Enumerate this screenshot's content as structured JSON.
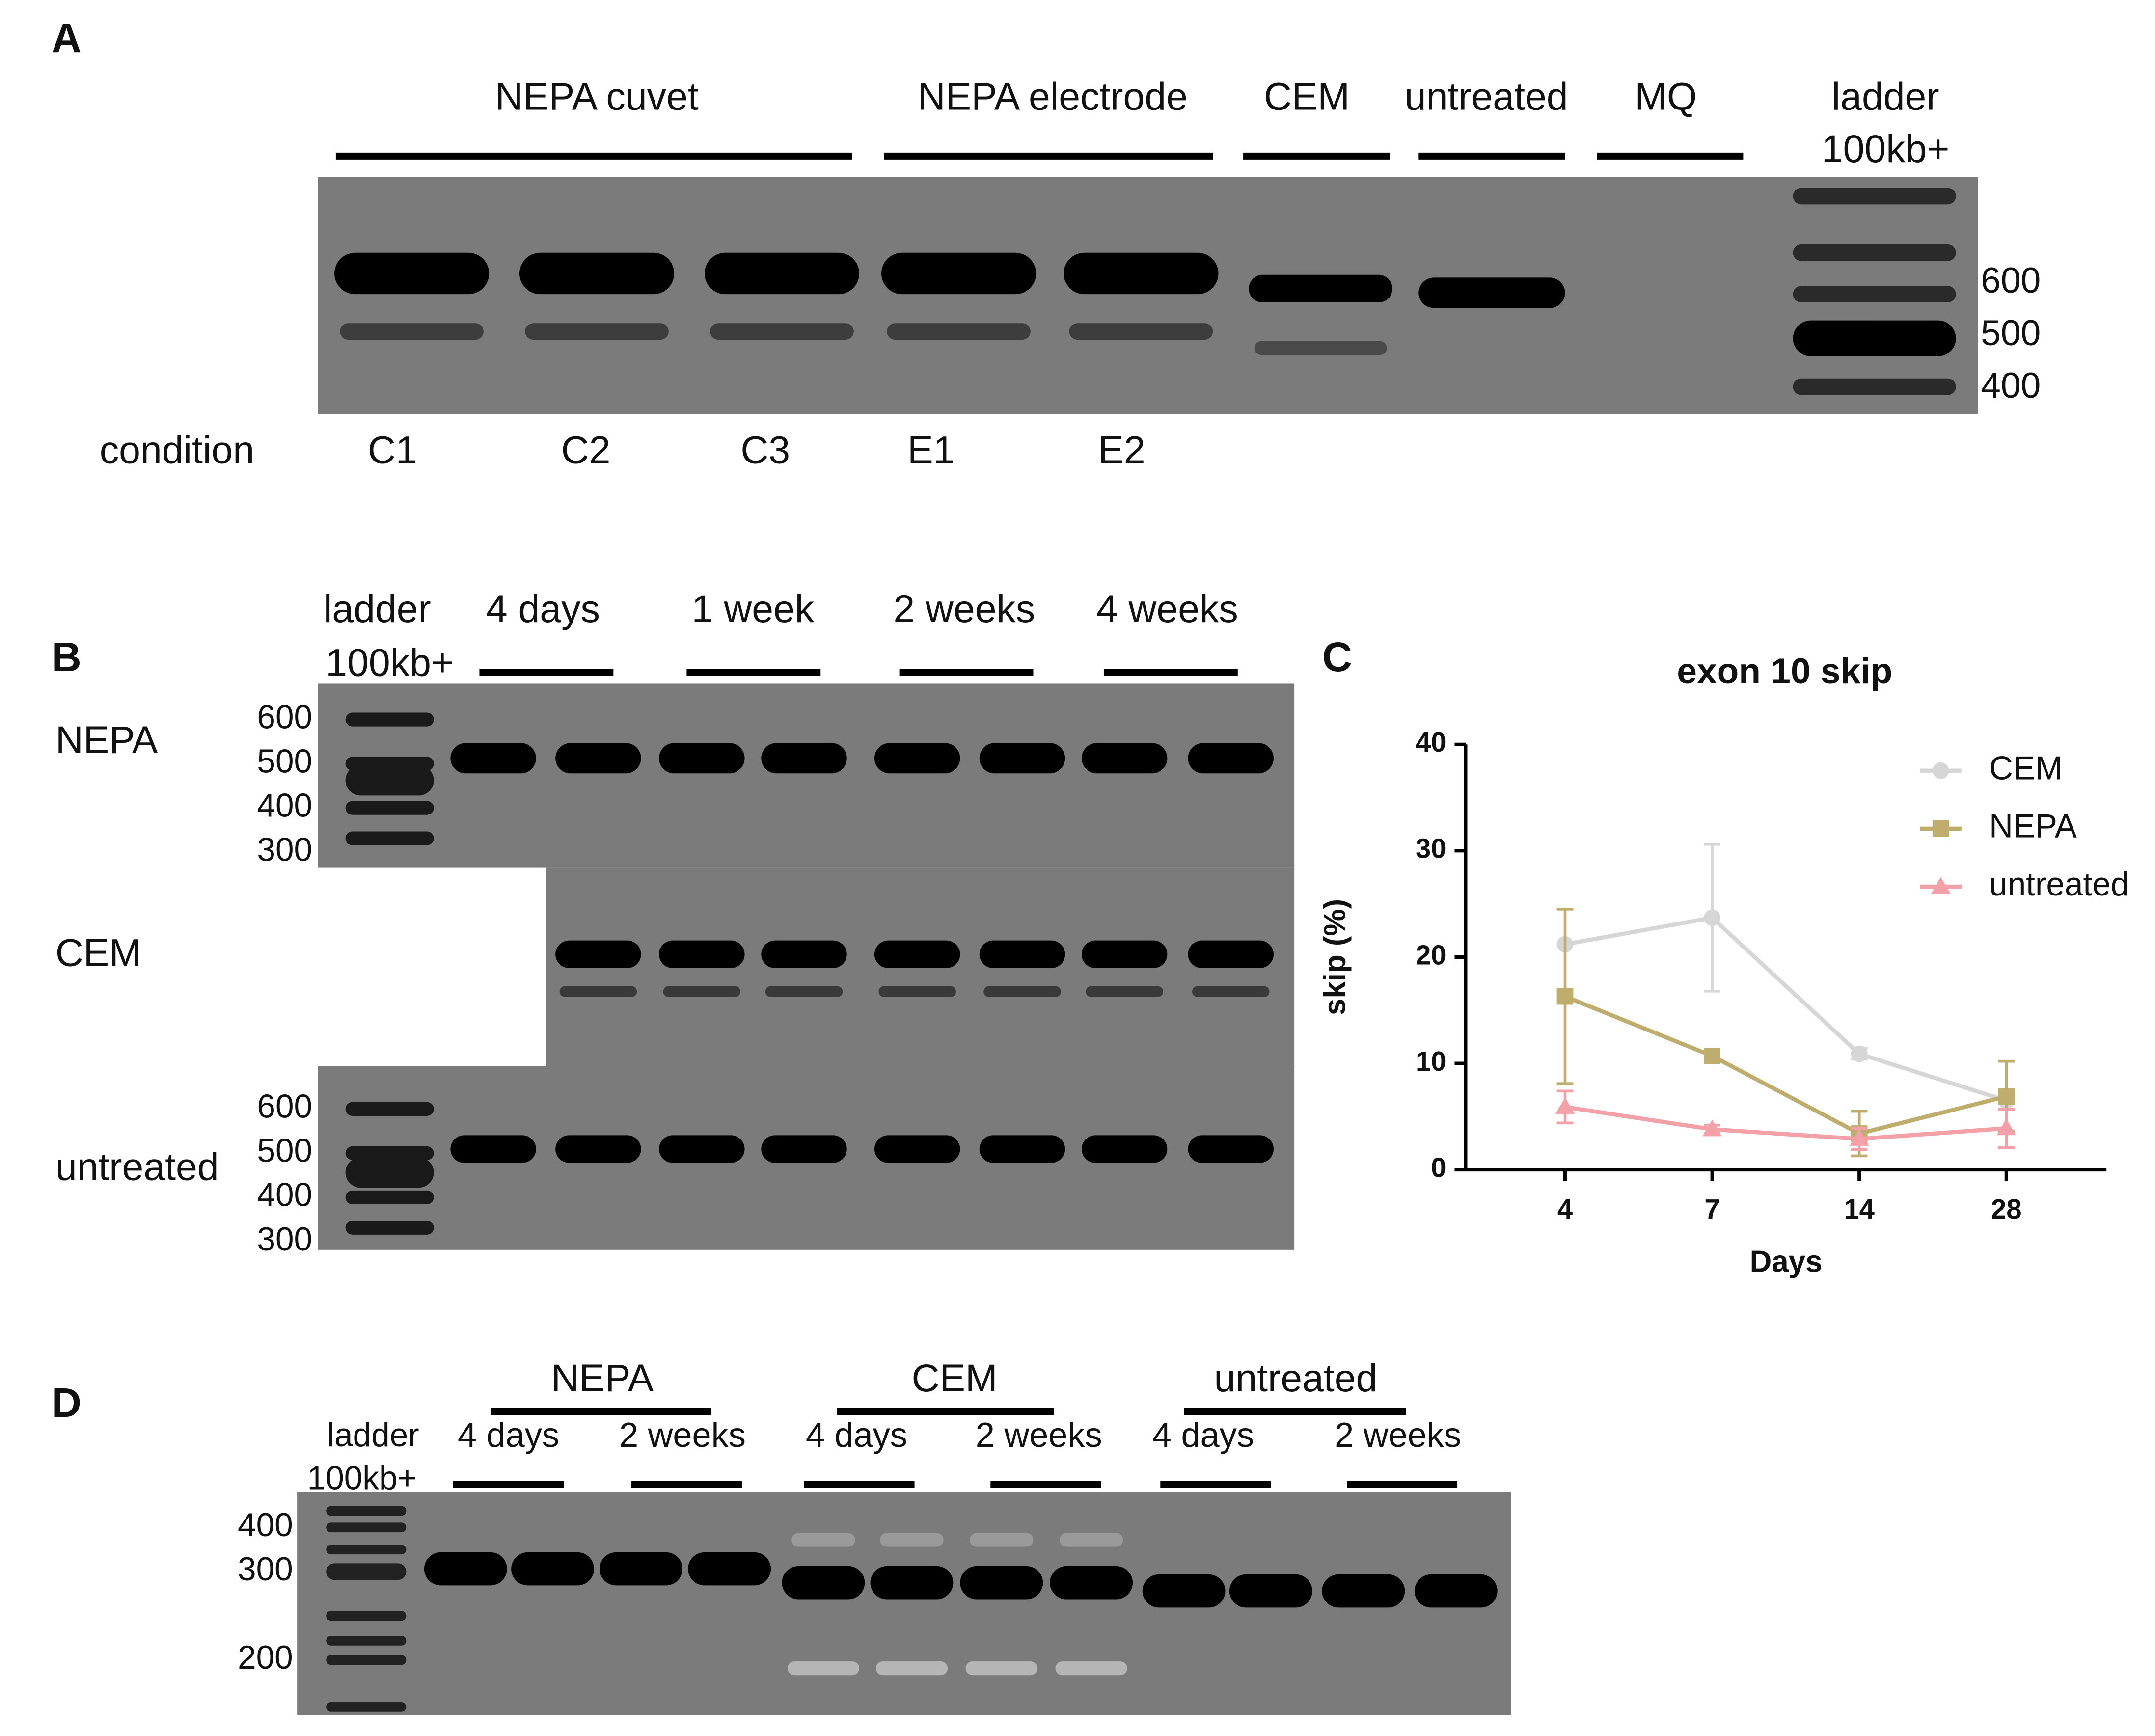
{
  "panel_labels": [
    "A",
    "B",
    "C",
    "D"
  ],
  "panel_a": {
    "groups": [
      "NEPA cuvet",
      "NEPA electrode",
      "CEM",
      "untreated",
      "MQ"
    ],
    "ladder": [
      "ladder",
      "100kb+"
    ],
    "sizes": [
      "600",
      "500",
      "400"
    ],
    "row_label": "condition",
    "lanes": [
      "C1",
      "C2",
      "C3",
      "E1",
      "E2"
    ]
  },
  "panel_b": {
    "ladder": [
      "ladder",
      "100kb+"
    ],
    "timepoints": [
      "4 days",
      "1 week",
      "2 weeks",
      "4 weeks"
    ],
    "rows": [
      "NEPA",
      "CEM",
      "untreated"
    ],
    "sizes_top": [
      "600",
      "500",
      "400",
      "300"
    ],
    "sizes_bottom": [
      "600",
      "500",
      "400",
      "300"
    ]
  },
  "chart_data": {
    "type": "line",
    "title": "exon 10 skip",
    "x_label": "Days",
    "y_label": "skip (%)",
    "categories": [
      "4",
      "7",
      "14",
      "28"
    ],
    "ylim": [
      0,
      40
    ],
    "yticks": [
      0,
      10,
      20,
      30,
      40
    ],
    "legend": "upper right",
    "series": [
      {
        "name": "CEM",
        "color": "#d6d6d6",
        "marker": "circle",
        "values": [
          21.2,
          23.7,
          10.9,
          6.5
        ],
        "errors": [
          0,
          6.9,
          0.5,
          0.8
        ]
      },
      {
        "name": "NEPA",
        "color": "#bfad6e",
        "marker": "square",
        "values": [
          16.3,
          10.7,
          3.4,
          6.9
        ],
        "errors": [
          8.2,
          0.6,
          2.1,
          3.3
        ]
      },
      {
        "name": "untreated",
        "color": "#f4a0a8",
        "marker": "triangle",
        "values": [
          5.9,
          3.8,
          2.9,
          3.9
        ],
        "errors": [
          1.5,
          0.4,
          1.0,
          1.8
        ]
      }
    ]
  },
  "panel_d": {
    "groups": [
      "NEPA",
      "CEM",
      "untreated"
    ],
    "timepoints": [
      "4 days",
      "2 weeks",
      "4 days",
      "2 weeks",
      "4 days",
      "2 weeks"
    ],
    "ladder": [
      "ladder",
      "100kb+"
    ],
    "sizes": [
      "400",
      "300",
      "200"
    ]
  }
}
